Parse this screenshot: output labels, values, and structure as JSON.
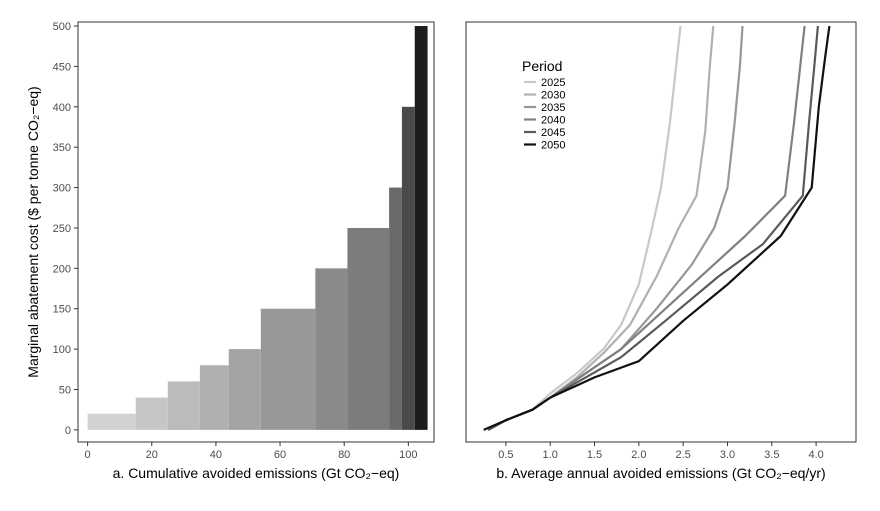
{
  "chart_data": [
    {
      "type": "bar",
      "panel": "a",
      "xlabel": "a. Cumulative avoided emissions (Gt CO₂−eq)",
      "ylabel": "Marginal abatement cost ($ per tonne CO₂−eq)",
      "xlim": [
        -3,
        108
      ],
      "ylim": [
        -15,
        505
      ],
      "xticks": [
        0,
        20,
        40,
        60,
        80,
        100
      ],
      "xtick_labels": [
        "0",
        "20",
        "40",
        "60",
        "80",
        "100"
      ],
      "yticks": [
        0,
        50,
        100,
        150,
        200,
        250,
        300,
        350,
        400,
        450,
        500
      ],
      "ytick_labels": [
        "0",
        "50",
        "100",
        "150",
        "200",
        "250",
        "300",
        "350",
        "400",
        "450",
        "500"
      ],
      "grid": false,
      "bars": [
        {
          "x0": 0,
          "x1": 15,
          "value": 20,
          "color": "#d2d2d2"
        },
        {
          "x0": 15,
          "x1": 25,
          "value": 40,
          "color": "#c6c6c6"
        },
        {
          "x0": 25,
          "x1": 35,
          "value": 60,
          "color": "#bbbbbb"
        },
        {
          "x0": 35,
          "x1": 44,
          "value": 80,
          "color": "#b0b0b0"
        },
        {
          "x0": 44,
          "x1": 54,
          "value": 100,
          "color": "#a4a4a4"
        },
        {
          "x0": 54,
          "x1": 71,
          "value": 150,
          "color": "#989898"
        },
        {
          "x0": 71,
          "x1": 81,
          "value": 200,
          "color": "#8a8a8a"
        },
        {
          "x0": 81,
          "x1": 94,
          "value": 250,
          "color": "#7c7c7c"
        },
        {
          "x0": 94,
          "x1": 98,
          "value": 300,
          "color": "#6a6a6a"
        },
        {
          "x0": 98,
          "x1": 102,
          "value": 400,
          "color": "#4a4a4a"
        },
        {
          "x0": 102,
          "x1": 106,
          "value": 500,
          "color": "#1c1c1c"
        }
      ]
    },
    {
      "type": "line",
      "panel": "b",
      "xlabel": "b. Average annual avoided emissions (Gt CO₂−eq/yr)",
      "xlim": [
        0.05,
        4.45
      ],
      "ylim": [
        -15,
        505
      ],
      "xticks": [
        0.5,
        1.0,
        1.5,
        2.0,
        2.5,
        3.0,
        3.5,
        4.0
      ],
      "xtick_labels": [
        "0.5",
        "1.0",
        "1.5",
        "2.0",
        "2.5",
        "3.0",
        "3.5",
        "4.0"
      ],
      "grid": false,
      "legend": {
        "title": "Period",
        "position": "top-left"
      },
      "series": [
        {
          "name": "2025",
          "color": "#c8c8c8",
          "width": 2.2,
          "x": [
            0.3,
            0.5,
            0.8,
            1.0,
            1.3,
            1.6,
            1.8,
            2.0,
            2.15,
            2.25,
            2.35,
            2.42,
            2.47
          ],
          "y": [
            0,
            12,
            25,
            45,
            70,
            100,
            130,
            180,
            250,
            300,
            380,
            450,
            500
          ]
        },
        {
          "name": "2030",
          "color": "#b0b0b0",
          "width": 2.2,
          "x": [
            0.3,
            0.5,
            0.8,
            1.0,
            1.3,
            1.6,
            1.9,
            2.2,
            2.45,
            2.65,
            2.75,
            2.8,
            2.84
          ],
          "y": [
            0,
            12,
            25,
            40,
            65,
            95,
            130,
            190,
            250,
            290,
            370,
            450,
            500
          ]
        },
        {
          "name": "2035",
          "color": "#989898",
          "width": 2.2,
          "x": [
            0.3,
            0.5,
            0.8,
            1.0,
            1.4,
            1.8,
            2.2,
            2.6,
            2.85,
            3.0,
            3.08,
            3.14,
            3.17
          ],
          "y": [
            0,
            12,
            25,
            40,
            70,
            100,
            150,
            205,
            250,
            300,
            380,
            450,
            500
          ]
        },
        {
          "name": "2040",
          "color": "#808080",
          "width": 2.2,
          "x": [
            0.3,
            0.5,
            0.8,
            1.0,
            1.4,
            1.8,
            2.2,
            2.8,
            3.2,
            3.65,
            3.75,
            3.82,
            3.87
          ],
          "y": [
            0,
            12,
            25,
            40,
            70,
            100,
            140,
            200,
            240,
            290,
            380,
            450,
            500
          ]
        },
        {
          "name": "2045",
          "color": "#5a5a5a",
          "width": 2.2,
          "x": [
            0.3,
            0.5,
            0.8,
            1.0,
            1.4,
            1.8,
            2.3,
            2.9,
            3.4,
            3.85,
            3.92,
            3.98,
            4.02
          ],
          "y": [
            0,
            12,
            25,
            40,
            65,
            90,
            135,
            190,
            230,
            290,
            380,
            450,
            500
          ]
        },
        {
          "name": "2050",
          "color": "#111111",
          "width": 2.2,
          "x": [
            0.25,
            0.5,
            0.8,
            1.0,
            1.5,
            2.0,
            2.5,
            3.0,
            3.6,
            3.95,
            4.03,
            4.1,
            4.15
          ],
          "y": [
            0,
            12,
            25,
            40,
            65,
            85,
            135,
            180,
            240,
            300,
            400,
            460,
            500
          ]
        }
      ]
    }
  ]
}
